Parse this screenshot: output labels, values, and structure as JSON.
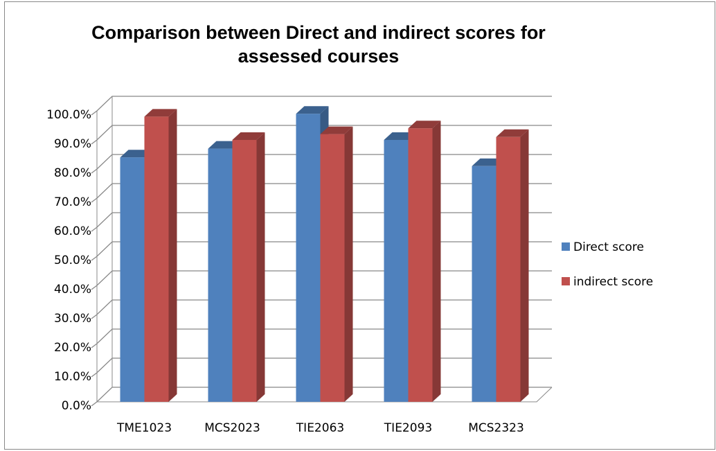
{
  "chart_data": {
    "type": "bar3d",
    "title": "Comparison between Direct and indirect scores for assessed courses",
    "categories": [
      "TME1023",
      "MCS2023",
      "TIE2063",
      "TIE2093",
      "MCS2323"
    ],
    "series": [
      {
        "name": "Direct score",
        "color": "#4f81bd",
        "values": [
          84,
          87,
          99,
          90,
          81
        ]
      },
      {
        "name": "indirect score",
        "color": "#c0504d",
        "values": [
          98,
          90,
          92,
          94,
          91
        ]
      }
    ],
    "ylim": [
      0,
      100
    ],
    "yticks": [
      {
        "value": 0,
        "label": "0.0%"
      },
      {
        "value": 10,
        "label": "10.0%"
      },
      {
        "value": 20,
        "label": "20.0%"
      },
      {
        "value": 30,
        "label": "30.0%"
      },
      {
        "value": 40,
        "label": "40.0%"
      },
      {
        "value": 50,
        "label": "50.0%"
      },
      {
        "value": 60,
        "label": "60.0%"
      },
      {
        "value": 70,
        "label": "70.0%"
      },
      {
        "value": 80,
        "label": "80.0%"
      },
      {
        "value": 90,
        "label": "90.0%"
      },
      {
        "value": 100,
        "label": "100.0%"
      }
    ],
    "grid": true,
    "legend": "right"
  }
}
